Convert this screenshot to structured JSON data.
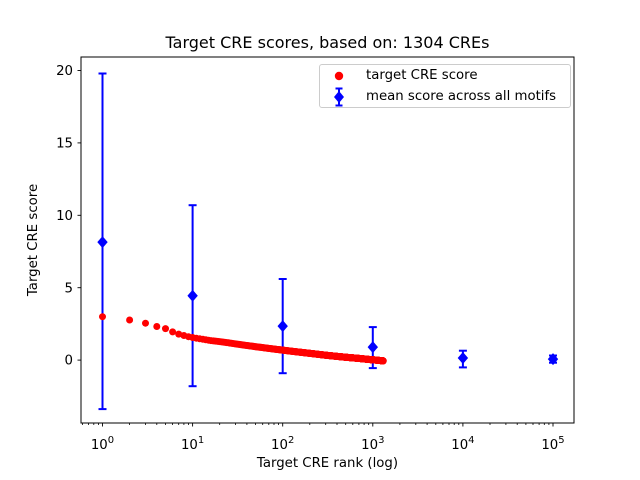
{
  "colors": {
    "target_series": "#ff0000",
    "mean_series": "#0000ff",
    "axis": "#000000",
    "text": "#000000",
    "legend_border": "#cccccc",
    "background": "#ffffff"
  },
  "chart_data": {
    "type": "scatter",
    "title": "Target CRE scores, based on: 1304 CREs",
    "xlabel": "Target CRE rank (log)",
    "ylabel": "Target CRE score",
    "x_scale": "log",
    "grid": false,
    "xlim": [
      0.577,
      171000
    ],
    "ylim": [
      -4.34,
      20.93
    ],
    "n_cres": 1304,
    "y_ticks": [
      {
        "value": 0,
        "label": "0"
      },
      {
        "value": 5,
        "label": "5"
      },
      {
        "value": 10,
        "label": "10"
      },
      {
        "value": 15,
        "label": "15"
      },
      {
        "value": 20,
        "label": "20"
      }
    ],
    "x_ticks": [
      {
        "value": 1,
        "mantissa": "10",
        "exponent": "0"
      },
      {
        "value": 10,
        "mantissa": "10",
        "exponent": "1"
      },
      {
        "value": 100,
        "mantissa": "10",
        "exponent": "2"
      },
      {
        "value": 1000,
        "mantissa": "10",
        "exponent": "3"
      },
      {
        "value": 10000,
        "mantissa": "10",
        "exponent": "4"
      },
      {
        "value": 100000,
        "mantissa": "10",
        "exponent": "5"
      }
    ],
    "series": [
      {
        "name": "target CRE score",
        "type": "scatter",
        "marker": "circle",
        "color": "#ff0000",
        "n_points": 1304,
        "profile_points": [
          [
            1,
            3.0
          ],
          [
            2,
            2.77
          ],
          [
            3,
            2.55
          ],
          [
            4,
            2.32
          ],
          [
            5,
            2.18
          ],
          [
            6,
            1.95
          ],
          [
            7,
            1.8
          ],
          [
            8,
            1.7
          ],
          [
            9,
            1.62
          ],
          [
            10,
            1.56
          ],
          [
            13,
            1.44
          ],
          [
            16,
            1.35
          ],
          [
            20,
            1.28
          ],
          [
            26,
            1.18
          ],
          [
            35,
            1.06
          ],
          [
            50,
            0.93
          ],
          [
            70,
            0.81
          ],
          [
            100,
            0.69
          ],
          [
            140,
            0.58
          ],
          [
            200,
            0.47
          ],
          [
            300,
            0.34
          ],
          [
            400,
            0.26
          ],
          [
            500,
            0.2
          ],
          [
            700,
            0.12
          ],
          [
            900,
            0.05
          ],
          [
            1100,
            0.0
          ],
          [
            1304,
            -0.05
          ]
        ]
      },
      {
        "name": "mean score across all motifs",
        "type": "errorbar",
        "marker": "diamond",
        "color": "#0000ff",
        "points": [
          {
            "x": 1,
            "mean": 8.15,
            "low": -3.38,
            "high": 19.79
          },
          {
            "x": 10,
            "mean": 4.45,
            "low": -1.8,
            "high": 10.7
          },
          {
            "x": 100,
            "mean": 2.35,
            "low": -0.9,
            "high": 5.6
          },
          {
            "x": 1000,
            "mean": 0.9,
            "low": -0.55,
            "high": 2.28
          },
          {
            "x": 10000,
            "mean": 0.15,
            "low": -0.5,
            "high": 0.65
          },
          {
            "x": 100000,
            "mean": 0.07,
            "low": -0.18,
            "high": 0.32
          }
        ]
      }
    ],
    "legend": {
      "position": "upper right",
      "items": [
        {
          "label": "target CRE score",
          "marker": "red-dot"
        },
        {
          "label": "mean score across all motifs",
          "marker": "blue-diamond-errorbar"
        }
      ]
    }
  }
}
